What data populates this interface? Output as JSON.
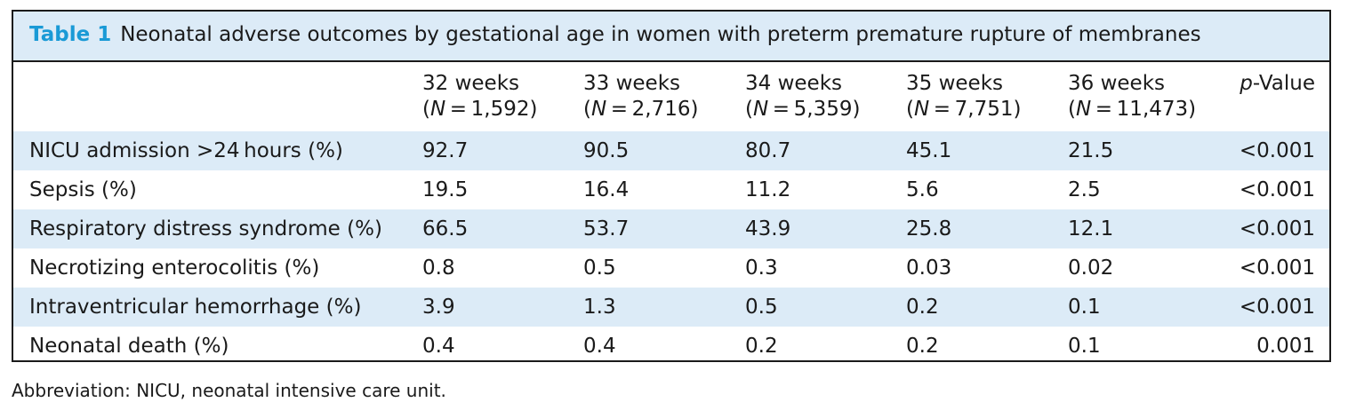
{
  "table": {
    "label": "Table 1",
    "title": "Neonatal adverse outcomes by gestational age in women with preterm premature rupture of membranes",
    "header": {
      "outcome": "",
      "columns": [
        {
          "weeks": "32 weeks",
          "n_prefix": "(",
          "n_var": "N",
          "n_eq": " = ",
          "n_val": "1,592",
          "n_suffix": ")"
        },
        {
          "weeks": "33 weeks",
          "n_prefix": "(",
          "n_var": "N",
          "n_eq": " = ",
          "n_val": "2,716",
          "n_suffix": ")"
        },
        {
          "weeks": "34 weeks",
          "n_prefix": "(",
          "n_var": "N",
          "n_eq": " = ",
          "n_val": "5,359",
          "n_suffix": ")"
        },
        {
          "weeks": "35 weeks",
          "n_prefix": "(",
          "n_var": "N",
          "n_eq": " = ",
          "n_val": "7,751",
          "n_suffix": ")"
        },
        {
          "weeks": "36 weeks",
          "n_prefix": "(",
          "n_var": "N",
          "n_eq": " = ",
          "n_val": "11,473",
          "n_suffix": ")"
        }
      ],
      "pvalue_italic": "p",
      "pvalue_rest": "-Value"
    },
    "rows": [
      {
        "outcome": "NICU admission >24 hours (%)",
        "values": [
          "92.7",
          "90.5",
          "80.7",
          "45.1",
          "21.5"
        ],
        "p": "<0.001"
      },
      {
        "outcome": "Sepsis (%)",
        "values": [
          "19.5",
          "16.4",
          "11.2",
          "5.6",
          "2.5"
        ],
        "p": "<0.001"
      },
      {
        "outcome": "Respiratory distress syndrome (%)",
        "values": [
          "66.5",
          "53.7",
          "43.9",
          "25.8",
          "12.1"
        ],
        "p": "<0.001"
      },
      {
        "outcome": "Necrotizing enterocolitis (%)",
        "values": [
          "0.8",
          "0.5",
          "0.3",
          "0.03",
          "0.02"
        ],
        "p": "<0.001"
      },
      {
        "outcome": "Intraventricular hemorrhage (%)",
        "values": [
          "3.9",
          "1.3",
          "0.5",
          "0.2",
          "0.1"
        ],
        "p": "<0.001"
      },
      {
        "outcome": "Neonatal death (%)",
        "values": [
          "0.4",
          "0.4",
          "0.2",
          "0.2",
          "0.1"
        ],
        "p": "0.001"
      }
    ]
  },
  "footnote": "Abbreviation: NICU, neonatal intensive care unit.",
  "colors": {
    "shade": "#dcebf7",
    "label_accent": "#1a9ad6",
    "border": "#1a1a1a"
  }
}
